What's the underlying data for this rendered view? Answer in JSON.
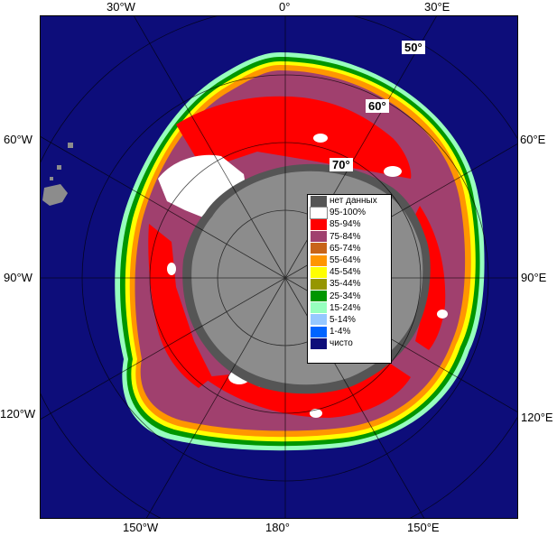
{
  "map": {
    "edge_labels": {
      "top": [
        "30°W",
        "0°",
        "30°E"
      ],
      "bottom": [
        "150°W",
        "180°",
        "150°E"
      ],
      "left": [
        "60°W",
        "90°W",
        "120°W"
      ],
      "right": [
        "60°E",
        "90°E",
        "120°E"
      ]
    },
    "lat_labels": [
      "50°",
      "60°",
      "70°"
    ],
    "colors": {
      "ocean": "#0d0d7a",
      "land": "#8c8c8c",
      "nodata": "#555555",
      "c95_100": "#ffffff",
      "c85_94": "#ff0000",
      "c75_84": "#a0406e",
      "c65_74": "#c86419",
      "c55_64": "#ff9600",
      "c45_54": "#ffff00",
      "c35_44": "#969600",
      "c25_34": "#009600",
      "c15_24": "#96ffbe",
      "c5_14": "#96c8ff",
      "c1_4": "#0064ff",
      "clear": "#0d0d7a"
    }
  },
  "legend": {
    "items": [
      {
        "label": "нет данных",
        "color": "#555555"
      },
      {
        "label": "95-100%",
        "color": "#ffffff"
      },
      {
        "label": "85-94%",
        "color": "#ff0000"
      },
      {
        "label": "75-84%",
        "color": "#a0406e"
      },
      {
        "label": "65-74%",
        "color": "#c86419"
      },
      {
        "label": "55-64%",
        "color": "#ff9600"
      },
      {
        "label": "45-54%",
        "color": "#ffff00"
      },
      {
        "label": "35-44%",
        "color": "#969600"
      },
      {
        "label": "25-34%",
        "color": "#009600"
      },
      {
        "label": "15-24%",
        "color": "#96ffbe"
      },
      {
        "label": "5-14%",
        "color": "#96c8ff"
      },
      {
        "label": "1-4%",
        "color": "#0064ff"
      },
      {
        "label": "чисто",
        "color": "#0d0d7a"
      }
    ]
  }
}
